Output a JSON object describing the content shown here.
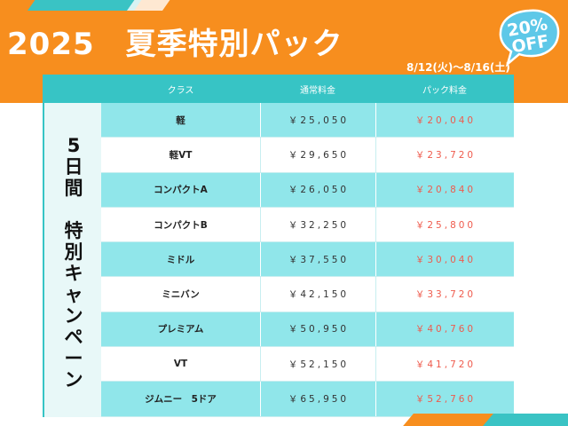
{
  "header": {
    "title": "2025　夏季特別パック",
    "period": "8/12(火)〜8/16(土)",
    "badge_percent": "20%",
    "badge_off": "OFF"
  },
  "colors": {
    "orange": "#f78e1e",
    "teal": "#37c4c5",
    "light_teal": "#90e6ea",
    "price_red": "#ef5a4c"
  },
  "table": {
    "headers": [
      "クラス",
      "通常料金",
      "パック料金"
    ],
    "side_label_top": [
      "5",
      "日",
      "間"
    ],
    "side_label_bottom": [
      "特",
      "別",
      "キ",
      "ャ",
      "ン",
      "ペ",
      "ー",
      "ン"
    ],
    "rows": [
      {
        "class": "軽",
        "regular": "￥25,050",
        "pack": "￥20,040"
      },
      {
        "class": "軽VT",
        "regular": "￥29,650",
        "pack": "￥23,720"
      },
      {
        "class": "コンパクトA",
        "regular": "￥26,050",
        "pack": "￥20,840"
      },
      {
        "class": "コンパクトB",
        "regular": "￥32,250",
        "pack": "￥25,800"
      },
      {
        "class": "ミドル",
        "regular": "￥37,550",
        "pack": "￥30,040"
      },
      {
        "class": "ミニバン",
        "regular": "￥42,150",
        "pack": "￥33,720"
      },
      {
        "class": "プレミアム",
        "regular": "￥50,950",
        "pack": "￥40,760"
      },
      {
        "class": "VT",
        "regular": "￥52,150",
        "pack": "￥41,720"
      },
      {
        "class": "ジムニー　5ドア",
        "regular": "￥65,950",
        "pack": "￥52,760"
      }
    ]
  }
}
